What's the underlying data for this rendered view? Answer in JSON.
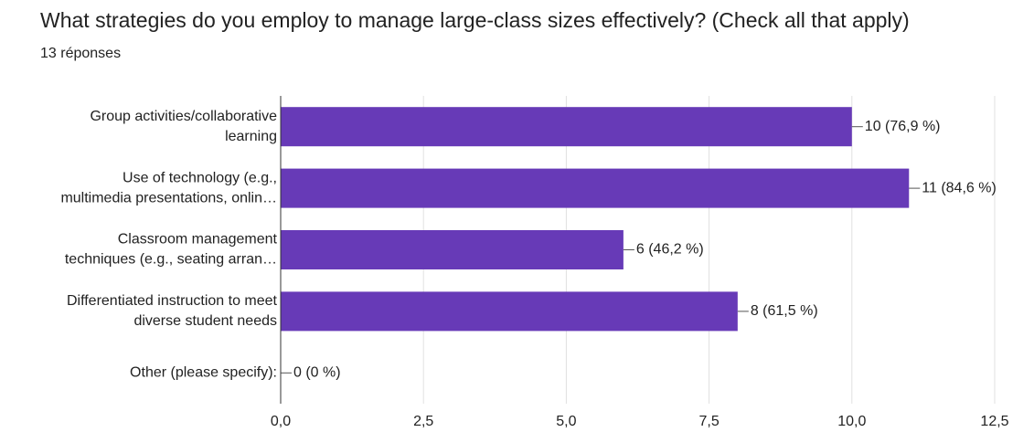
{
  "chart_data": {
    "type": "bar",
    "orientation": "horizontal",
    "title": "What strategies do you employ to manage large-class sizes effectively? (Check all that apply)",
    "subtitle": "13 réponses",
    "categories": [
      [
        "Group activities/collaborative",
        "learning"
      ],
      [
        "Use of technology (e.g.,",
        "multimedia presentations, onlin…"
      ],
      [
        "Classroom management",
        "techniques (e.g., seating arran…"
      ],
      [
        "Differentiated instruction to meet",
        "diverse student needs"
      ],
      [
        "Other (please specify):"
      ]
    ],
    "values": [
      10,
      11,
      6,
      8,
      0
    ],
    "value_labels": [
      "10 (76,9 %)",
      "11 (84,6 %)",
      "6 (46,2 %)",
      "8 (61,5 %)",
      "0 (0 %)"
    ],
    "color": "#673ab7",
    "xlim": [
      0,
      12.5
    ],
    "xticks": [
      {
        "value": 0,
        "label": "0,0"
      },
      {
        "value": 2.5,
        "label": "2,5"
      },
      {
        "value": 5,
        "label": "5,0"
      },
      {
        "value": 7.5,
        "label": "7,5"
      },
      {
        "value": 10,
        "label": "10,0"
      },
      {
        "value": 12.5,
        "label": "12,5"
      }
    ],
    "grid": true
  }
}
